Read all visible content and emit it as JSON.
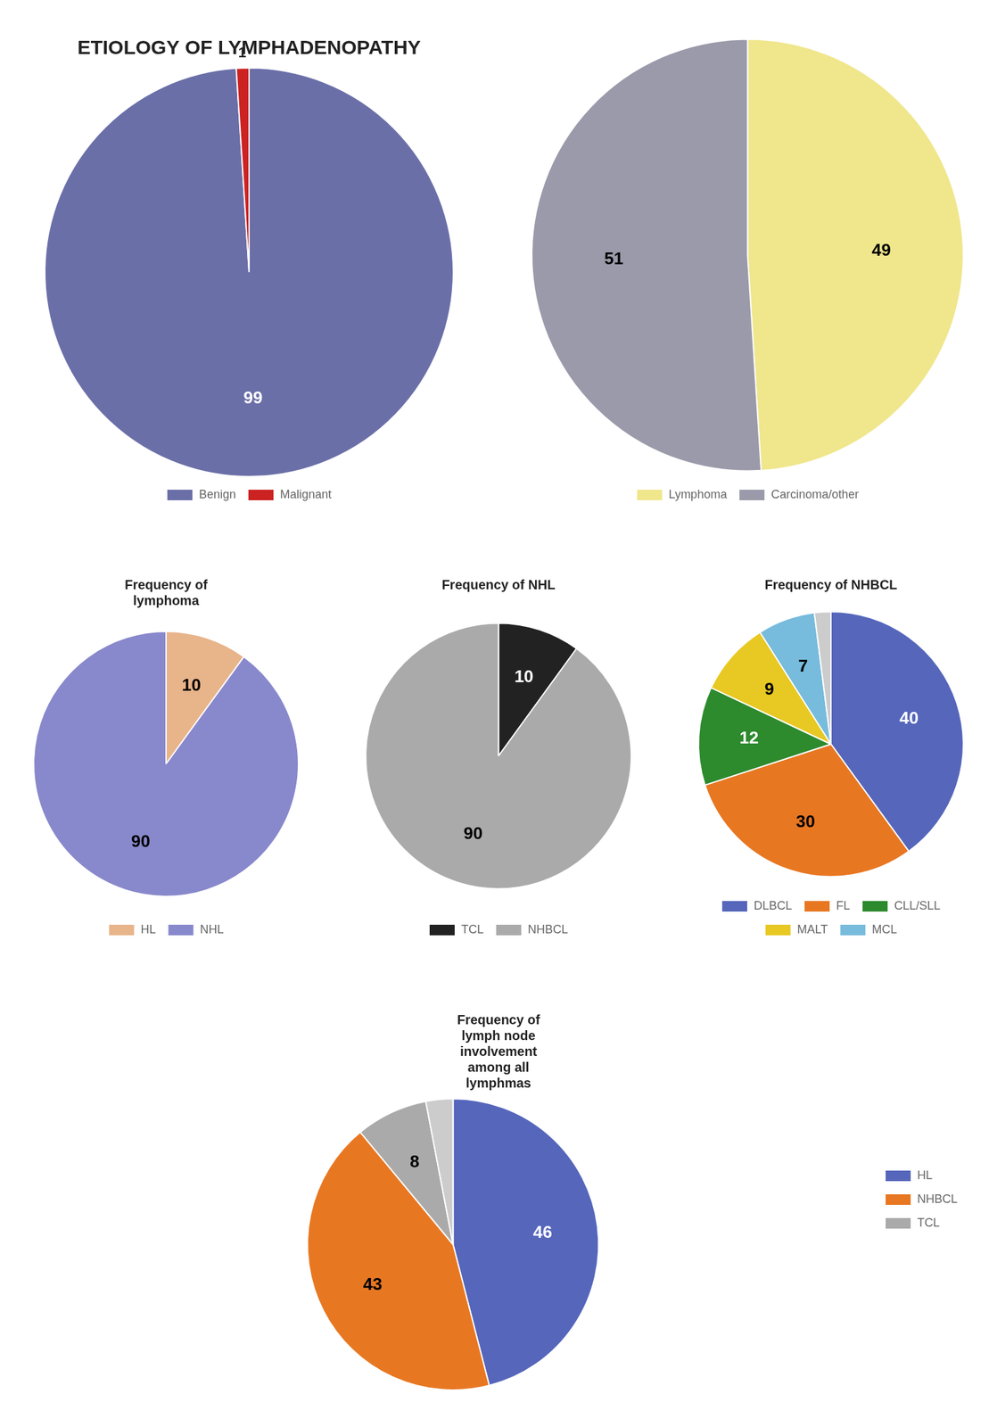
{
  "chart_data": [
    {
      "type": "pie",
      "title": "ETIOLOGY OF LYMPHADENOPATHY",
      "categories": [
        "Benign",
        "Malignant"
      ],
      "values": [
        99,
        1
      ],
      "colors": [
        "#6b6fa8",
        "#cc2222"
      ],
      "data_labels": true,
      "legend": "bottom"
    },
    {
      "type": "pie",
      "categories": [
        "Lymphoma",
        "Carcinoma/other"
      ],
      "values": [
        49,
        51
      ],
      "colors": [
        "#f0e68c",
        "#9a9aaa"
      ],
      "data_labels": true,
      "legend": "bottom"
    },
    {
      "type": "pie",
      "title": "Frequency of\nlymphoma",
      "categories": [
        "HL",
        "NHL"
      ],
      "values": [
        10,
        90
      ],
      "colors": [
        "#e8b48a",
        "#8888cc"
      ],
      "data_labels": true,
      "legend": "bottom"
    },
    {
      "type": "pie",
      "title": "Frequency of NHL",
      "categories": [
        "TCL",
        "NHBCL"
      ],
      "values": [
        10,
        90
      ],
      "colors": [
        "#222222",
        "#aaaaaa"
      ],
      "data_labels": true,
      "legend": "bottom"
    },
    {
      "type": "pie",
      "title": "Frequency of NHBCL",
      "categories": [
        "DLBCL",
        "FL",
        "CLL/SLL",
        "MALT",
        "MCL",
        null
      ],
      "values": [
        40,
        30,
        12,
        9,
        7,
        2
      ],
      "value_labels": [
        "40",
        "30",
        "12",
        "9",
        "7",
        null
      ],
      "colors": [
        "#5566bb",
        "#e87722",
        "#2d8a2d",
        "#e8c822",
        "#77bbdd",
        "#cccccc"
      ],
      "data_labels": true,
      "legend": "bottom"
    },
    {
      "type": "pie",
      "title": "Frequency of\nlymph node\ninvolvement\namong all\nlymphmas",
      "categories": [
        "HL",
        "NHBCL",
        "TCL",
        null
      ],
      "values": [
        46,
        43,
        8,
        3
      ],
      "value_labels": [
        "46",
        "43",
        "8",
        null
      ],
      "colors": [
        "#5566bb",
        "#e87722",
        "#aaaaaa",
        "#cccccc"
      ],
      "data_labels": true,
      "legend": "right"
    }
  ]
}
